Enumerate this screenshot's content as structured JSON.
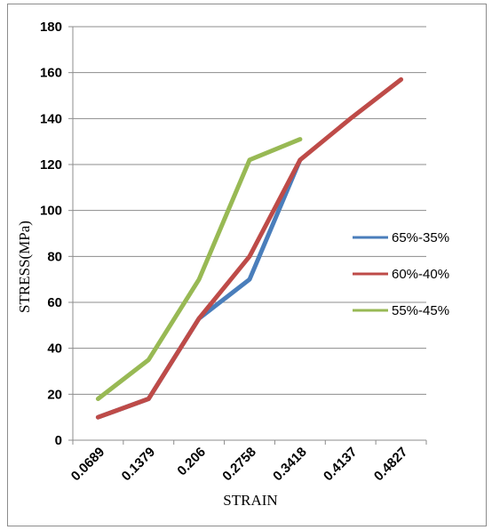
{
  "chart_data": {
    "type": "line",
    "title": "",
    "xlabel": "STRAIN",
    "ylabel": "STRESS(MPa)",
    "categories": [
      "0.0689",
      "0.1379",
      "0.206",
      "0.2758",
      "0.3418",
      "0.4137",
      "0.4827"
    ],
    "ylim": [
      0,
      180
    ],
    "yticks": [
      0,
      20,
      40,
      60,
      80,
      100,
      120,
      140,
      160,
      180
    ],
    "grid": true,
    "legend_position": "right",
    "series": [
      {
        "name": "65%-35%",
        "color": "#4a7ebb",
        "values": [
          10,
          18,
          53,
          70,
          122,
          null,
          null
        ]
      },
      {
        "name": "60%-40%",
        "color": "#be4b48",
        "values": [
          10,
          18,
          53,
          80,
          122,
          140,
          157
        ]
      },
      {
        "name": "55%-45%",
        "color": "#98b954",
        "values": [
          18,
          35,
          70,
          122,
          131,
          null,
          null
        ]
      }
    ]
  }
}
